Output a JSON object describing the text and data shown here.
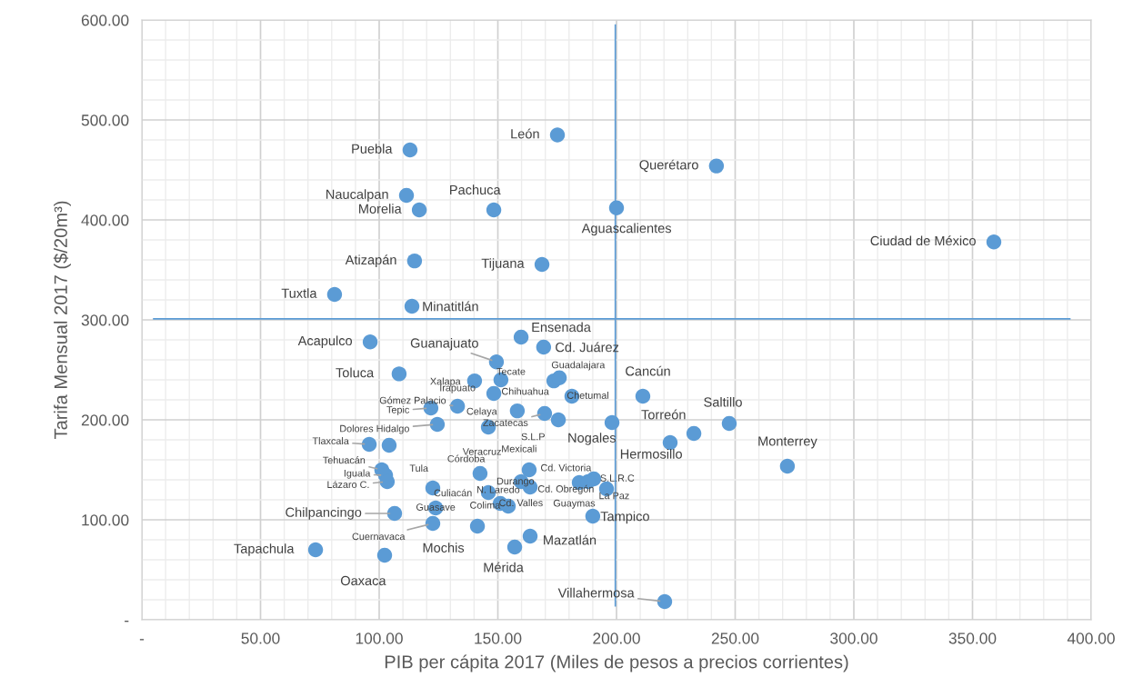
{
  "chart_data": {
    "type": "scatter",
    "xlabel": "PIB per cápita 2017 (Miles de pesos a precios corrientes)",
    "ylabel": "Tarifa Mensual 2017 ($/20m³)",
    "xlim": [
      0,
      400
    ],
    "ylim": [
      0,
      600
    ],
    "xticks": [
      {
        "value": 0,
        "label": "-"
      },
      {
        "value": 50,
        "label": "50.00"
      },
      {
        "value": 100,
        "label": "100.00"
      },
      {
        "value": 150,
        "label": "150.00"
      },
      {
        "value": 200,
        "label": "200.00"
      },
      {
        "value": 250,
        "label": "250.00"
      },
      {
        "value": 300,
        "label": "300.00"
      },
      {
        "value": 350,
        "label": "350.00"
      },
      {
        "value": 400,
        "label": "400.00"
      }
    ],
    "yticks": [
      {
        "value": 0,
        "label": "-"
      },
      {
        "value": 100,
        "label": "100.00"
      },
      {
        "value": 200,
        "label": "200.00"
      },
      {
        "value": 300,
        "label": "300.00"
      },
      {
        "value": 400,
        "label": "400.00"
      },
      {
        "value": 500,
        "label": "500.00"
      },
      {
        "value": 600,
        "label": "600.00"
      }
    ],
    "grid": true,
    "marker": "circle",
    "series": [
      {
        "color": "#5b9bd5",
        "x": [
          113.0,
          175.1,
          242.1,
          111.5,
          116.9,
          148.3,
          200.0,
          359.0,
          114.9,
          168.6,
          81.2,
          113.8,
          159.8,
          96.2,
          169.3,
          149.4,
          108.4,
          140.2,
          151.3,
          173.6,
          175.9,
          148.3,
          181.2,
          211.1,
          133.0,
          121.8,
          158.2,
          169.7,
          175.5,
          146.0,
          124.5,
          198.1,
          232.6,
          247.5,
          222.6,
          95.8,
          104.2,
          272.0,
          101.1,
          102.7,
          103.4,
          122.6,
          142.5,
          163.2,
          159.8,
          163.6,
          146.0,
          154.4,
          151.0,
          123.8,
          141.4,
          122.6,
          106.5,
          73.2,
          102.3,
          157.1,
          163.6,
          190.0,
          220.3,
          184.3,
          190.4,
          195.8,
          188.0
        ],
        "values": [
          470,
          485,
          454,
          424.5,
          410,
          410,
          412,
          378,
          359,
          355.5,
          325.5,
          313.6,
          282.7,
          278,
          272.7,
          258,
          246,
          239,
          240,
          239,
          242,
          226.4,
          223.6,
          223.6,
          213.6,
          211.8,
          209,
          206.4,
          200,
          192.7,
          195.5,
          197.3,
          186.4,
          196.4,
          177.3,
          175.5,
          174.5,
          153.6,
          150,
          144.5,
          138.2,
          131.8,
          146.4,
          150,
          138.2,
          132.7,
          127.3,
          113.6,
          116.4,
          111.8,
          93.6,
          96.4,
          106.4,
          70,
          64.5,
          72.7,
          83.6,
          103.6,
          18.2,
          137.3,
          140.9,
          130.9,
          138.2
        ]
      },
      {
        "type": "line",
        "marker": "none",
        "color": "#5b9bd5",
        "x": [
          5,
          391
        ],
        "values": [
          301,
          301
        ]
      },
      {
        "type": "line",
        "marker": "none",
        "color": "#5b9bd5",
        "x": [
          199.5,
          199.5
        ],
        "values": [
          14,
          595
        ]
      }
    ],
    "annotations": [
      {
        "text": "Puebla",
        "x": 113.0,
        "y": 470
      },
      {
        "text": "León",
        "x": 175.1,
        "y": 485
      },
      {
        "text": "Querétaro",
        "x": 242.1,
        "y": 454
      },
      {
        "text": "Naucalpan",
        "x": 111.5,
        "y": 424.5
      },
      {
        "text": "Morelia",
        "x": 116.9,
        "y": 410
      },
      {
        "text": "Pachuca",
        "x": 148.3,
        "y": 410
      },
      {
        "text": "Aguascalientes",
        "x": 200.0,
        "y": 412
      },
      {
        "text": "Ciudad de México",
        "x": 359.0,
        "y": 378
      },
      {
        "text": "Atizapán",
        "x": 114.9,
        "y": 359
      },
      {
        "text": "Tijuana",
        "x": 168.6,
        "y": 355.5
      },
      {
        "text": "Tuxtla",
        "x": 81.2,
        "y": 325.5
      },
      {
        "text": "Minatitlán",
        "x": 113.8,
        "y": 313.6
      },
      {
        "text": "Ensenada",
        "x": 159.8,
        "y": 282.7
      },
      {
        "text": "Acapulco",
        "x": 96.2,
        "y": 278
      },
      {
        "text": "Cd. Juárez",
        "x": 169.3,
        "y": 272.7
      },
      {
        "text": "Guanajuato",
        "x": 149.4,
        "y": 258
      },
      {
        "text": "Toluca",
        "x": 108.4,
        "y": 246
      },
      {
        "text": "Xalapa",
        "x": 140.2,
        "y": 239
      },
      {
        "text": "Tecate",
        "x": 151.3,
        "y": 240
      },
      {
        "text": "Guadalajara",
        "x": 173.6,
        "y": 239
      },
      {
        "text": "Chihuahua",
        "x": 148.3,
        "y": 226.4
      },
      {
        "text": "Chetumal",
        "x": 181.2,
        "y": 223.6
      },
      {
        "text": "Cancún",
        "x": 211.1,
        "y": 223.6
      },
      {
        "text": "Gómez Palacio",
        "x": 133.0,
        "y": 213.6
      },
      {
        "text": "Irapuato",
        "x": 133.0,
        "y": 213.6
      },
      {
        "text": "Tepic",
        "x": 121.8,
        "y": 211.8
      },
      {
        "text": "Celaya",
        "x": 158.2,
        "y": 209
      },
      {
        "text": "Zacatecas",
        "x": 169.7,
        "y": 206.4
      },
      {
        "text": "S.L.P",
        "x": 175.5,
        "y": 200
      },
      {
        "text": "Veracruz",
        "x": 146.0,
        "y": 192.7
      },
      {
        "text": "Dolores Hidalgo",
        "x": 124.5,
        "y": 195.5
      },
      {
        "text": "Nogales",
        "x": 198.1,
        "y": 197.3
      },
      {
        "text": "Torreón",
        "x": 232.6,
        "y": 186.4
      },
      {
        "text": "Saltillo",
        "x": 247.5,
        "y": 196.4
      },
      {
        "text": "Hermosillo",
        "x": 222.6,
        "y": 177.3
      },
      {
        "text": "Tlaxcala",
        "x": 95.8,
        "y": 175.5
      },
      {
        "text": "Monterrey",
        "x": 272.0,
        "y": 153.6
      },
      {
        "text": "Tehuacán",
        "x": 101.1,
        "y": 150
      },
      {
        "text": "Iguala",
        "x": 102.7,
        "y": 144.5
      },
      {
        "text": "Lázaro C.",
        "x": 103.4,
        "y": 138.2
      },
      {
        "text": "Tula",
        "x": 122.6,
        "y": 131.8
      },
      {
        "text": "Córdoba",
        "x": 142.5,
        "y": 146.4
      },
      {
        "text": "Mexicali",
        "x": 163.2,
        "y": 150
      },
      {
        "text": "Cd. Victoria",
        "x": 163.2,
        "y": 150
      },
      {
        "text": "N. Laredo",
        "x": 159.8,
        "y": 138.2
      },
      {
        "text": "Cd. Obregón",
        "x": 163.6,
        "y": 132.7
      },
      {
        "text": "S.L.R.C",
        "x": 190.4,
        "y": 140.9
      },
      {
        "text": "La Paz",
        "x": 195.8,
        "y": 130.9
      },
      {
        "text": "Guaymas",
        "x": 184.3,
        "y": 137.3
      },
      {
        "text": "Durango",
        "x": 151.0,
        "y": 116.4
      },
      {
        "text": "Culiacán",
        "x": 146.0,
        "y": 127.3
      },
      {
        "text": "Cd. Valles",
        "x": 154.4,
        "y": 113.6
      },
      {
        "text": "Guasave",
        "x": 123.8,
        "y": 111.8
      },
      {
        "text": "Colima",
        "x": 141.4,
        "y": 93.6
      },
      {
        "text": "Mochis",
        "x": 141.4,
        "y": 93.6
      },
      {
        "text": "Cuernavaca",
        "x": 122.6,
        "y": 96.4
      },
      {
        "text": "Chilpancingo",
        "x": 106.5,
        "y": 106.4
      },
      {
        "text": "Tapachula",
        "x": 73.2,
        "y": 70
      },
      {
        "text": "Oaxaca",
        "x": 102.3,
        "y": 64.5
      },
      {
        "text": "Mérida",
        "x": 157.1,
        "y": 72.7
      },
      {
        "text": "Mazatlán",
        "x": 163.6,
        "y": 83.6
      },
      {
        "text": "Tampico",
        "x": 190.0,
        "y": 103.6
      },
      {
        "text": "Villahermosa",
        "x": 220.3,
        "y": 18.2
      }
    ]
  }
}
